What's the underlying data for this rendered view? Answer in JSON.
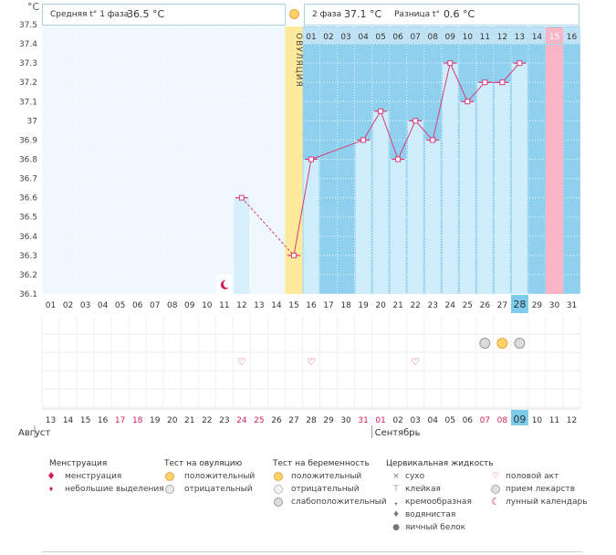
{
  "header": {
    "y_unit": "°C",
    "phase1_label": "Средняя t° 1 фаза",
    "phase1_value": "36.5 °C",
    "phase2_label": "2 фаза",
    "phase2_value": "37.1 °C",
    "diff_label": "Разница t°",
    "diff_value": "0.6 °C"
  },
  "colors": {
    "chart_bg": "#8fd0ef",
    "pre_bg": "#eef8fd",
    "bar": "#d4eefc",
    "line": "#d83c78",
    "ovulation": "#ffe99a",
    "highlight_day": "#f9b5c6",
    "header_row": "#bfe3f5",
    "today_cell": "#7ecbec",
    "red_text": "#d11e5d"
  },
  "chart_data": {
    "type": "line",
    "ylabel": "°C",
    "ylim": [
      36.1,
      37.5
    ],
    "yticks": [
      "37.5",
      "37.4",
      "37.3",
      "37.2",
      "37.1",
      "37",
      "36.9",
      "36.8",
      "36.7",
      "36.6",
      "36.5",
      "36.4",
      "36.3",
      "36.2",
      "36.1"
    ],
    "x": [
      "01",
      "02",
      "03",
      "04",
      "05",
      "06",
      "07",
      "08",
      "09",
      "10",
      "11",
      "12",
      "13",
      "14",
      "15",
      "16",
      "17",
      "18",
      "19",
      "20",
      "21",
      "22",
      "23",
      "24",
      "25",
      "26",
      "27",
      "28",
      "29",
      "30",
      "31"
    ],
    "series": [
      {
        "points": [
          {
            "day": "12",
            "temp": 36.6
          },
          {
            "day": "15",
            "temp": 36.3
          },
          {
            "day": "16",
            "temp": 36.8
          },
          {
            "day": "19",
            "temp": 36.9
          },
          {
            "day": "20",
            "temp": 37.05
          },
          {
            "day": "21",
            "temp": 36.8
          },
          {
            "day": "22",
            "temp": 37.0
          },
          {
            "day": "23",
            "temp": 36.9
          },
          {
            "day": "24",
            "temp": 37.3
          },
          {
            "day": "25",
            "temp": 37.1
          },
          {
            "day": "26",
            "temp": 37.2
          },
          {
            "day": "27",
            "temp": 37.2
          },
          {
            "day": "28",
            "temp": 37.3
          }
        ],
        "dashed_segments": [
          [
            "12",
            "15"
          ]
        ]
      }
    ],
    "ovulation_day": "15",
    "ovulation_label": "ОВУЛЯЦИЯ",
    "highlight_day": "15",
    "cycle_start_day": "15",
    "today_day": "28",
    "cycle_day_numbers": [
      "01",
      "02",
      "03",
      "04",
      "05",
      "06",
      "07",
      "08",
      "09",
      "10",
      "11",
      "12",
      "13",
      "14",
      "15",
      "16"
    ],
    "cycle_highlight_num": "15",
    "moon_day": "11",
    "intercourse_days": [
      "12",
      "16",
      "22"
    ],
    "pregnancy_test_days": [
      "26",
      "27",
      "28"
    ],
    "calendar_dates": [
      {
        "d": "13",
        "red": false
      },
      {
        "d": "14",
        "red": false
      },
      {
        "d": "15",
        "red": false
      },
      {
        "d": "16",
        "red": false
      },
      {
        "d": "17",
        "red": true
      },
      {
        "d": "18",
        "red": true
      },
      {
        "d": "19",
        "red": false
      },
      {
        "d": "20",
        "red": false
      },
      {
        "d": "21",
        "red": false
      },
      {
        "d": "22",
        "red": false
      },
      {
        "d": "23",
        "red": false
      },
      {
        "d": "24",
        "red": true
      },
      {
        "d": "25",
        "red": true
      },
      {
        "d": "26",
        "red": false
      },
      {
        "d": "27",
        "red": false
      },
      {
        "d": "28",
        "red": false
      },
      {
        "d": "29",
        "red": false
      },
      {
        "d": "30",
        "red": false
      },
      {
        "d": "31",
        "red": true
      },
      {
        "d": "01",
        "red": true
      },
      {
        "d": "02",
        "red": false
      },
      {
        "d": "03",
        "red": false
      },
      {
        "d": "04",
        "red": false
      },
      {
        "d": "05",
        "red": false
      },
      {
        "d": "06",
        "red": false
      },
      {
        "d": "07",
        "red": true
      },
      {
        "d": "08",
        "red": true
      },
      {
        "d": "09",
        "red": false
      },
      {
        "d": "10",
        "red": false
      },
      {
        "d": "11",
        "red": false
      },
      {
        "d": "12",
        "red": false
      }
    ],
    "today_calendar_index": 27,
    "month1": "Август",
    "month2": "Сентябрь"
  },
  "legend": {
    "menstruation": {
      "title": "Менструация",
      "items": [
        "менструация",
        "небольшие выделения"
      ]
    },
    "ovulation_test": {
      "title": "Тест на овуляцию",
      "items": [
        "положительный",
        "отрицательный"
      ]
    },
    "pregnancy_test": {
      "title": "Тест на беременность",
      "items": [
        "положительный",
        "отрицательный",
        "слабоположительный"
      ]
    },
    "cervical": {
      "title": "Цервикальная жидкость",
      "items": [
        "сухо",
        "клейкая",
        "кремообразная",
        "водянистая",
        "яичный белок"
      ]
    },
    "other": {
      "items": [
        "половой акт",
        "прием лекарств",
        "лунный календарь"
      ]
    }
  }
}
